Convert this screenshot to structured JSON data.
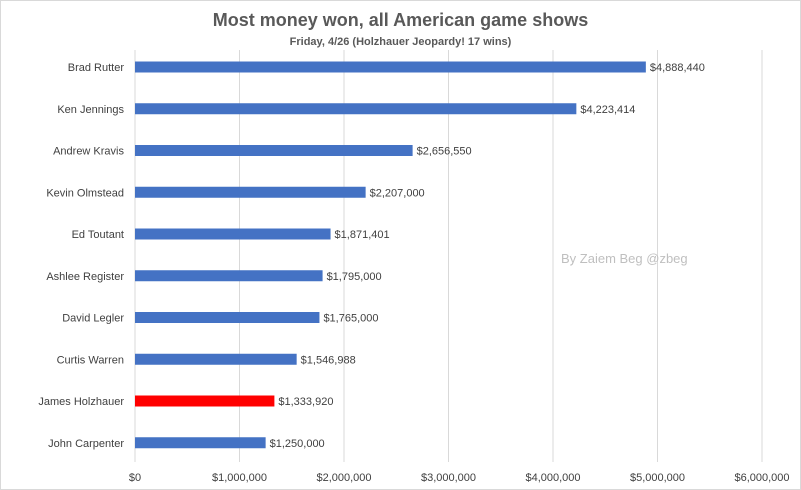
{
  "chart_data": {
    "type": "bar",
    "orientation": "horizontal",
    "title": "Most money won, all American game shows",
    "subtitle": "Friday,  4/26 (Holzhauer Jeopardy!  17 wins)",
    "watermark": "By Zaiem Beg @zbeg",
    "categories": [
      "Brad Rutter",
      "Ken Jennings",
      "Andrew Kravis",
      "Kevin Olmstead",
      "Ed Toutant",
      "Ashlee Register",
      "David Legler",
      "Curtis Warren",
      "James Holzhauer",
      "John Carpenter"
    ],
    "values": [
      4888440,
      4223414,
      2656550,
      2207000,
      1871401,
      1795000,
      1765000,
      1546988,
      1333920,
      1250000
    ],
    "value_labels": [
      "$4,888,440",
      "$4,223,414",
      "$2,656,550",
      "$2,207,000",
      "$1,871,401",
      "$1,795,000",
      "$1,765,000",
      "$1,546,988",
      "$1,333,920",
      "$1,250,000"
    ],
    "highlight": "James Holzhauer",
    "xlim": [
      0,
      6000000
    ],
    "x_ticks": [
      0,
      1000000,
      2000000,
      3000000,
      4000000,
      5000000,
      6000000
    ],
    "x_tick_labels": [
      "$0",
      "$1,000,000",
      "$2,000,000",
      "$3,000,000",
      "$4,000,000",
      "$5,000,000",
      "$6,000,000"
    ],
    "grid": true,
    "colors": {
      "bar": "#4472c4",
      "highlight": "#ff0000",
      "grid": "#d9d9d9",
      "text": "#404040"
    }
  }
}
